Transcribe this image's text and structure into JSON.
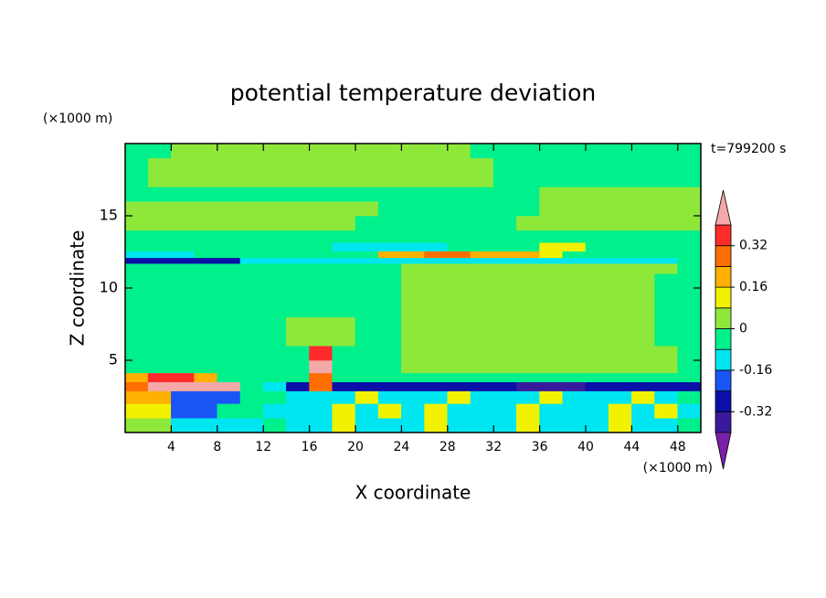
{
  "chart_data": {
    "type": "contour",
    "title": "potential temperature deviation",
    "xlabel": "X coordinate",
    "ylabel": "Z coordinate",
    "xunit": "(×1000 m)",
    "yunit": "(×1000 m)",
    "time_label": "t=799200 s",
    "xlim": [
      0,
      50
    ],
    "ylim": [
      0,
      20
    ],
    "xticks": [
      4,
      8,
      12,
      16,
      20,
      24,
      28,
      32,
      36,
      40,
      44,
      48
    ],
    "yticks": [
      5,
      10,
      15
    ],
    "levels": [
      -0.4,
      -0.32,
      -0.24,
      -0.16,
      -0.08,
      0,
      0.08,
      0.16,
      0.24,
      0.32,
      0.4
    ],
    "colors": [
      "#7a1fa8",
      "#3a1a9c",
      "#0a10a8",
      "#1a55f5",
      "#00e6f0",
      "#00f08c",
      "#8ee83a",
      "#f2f200",
      "#ffb000",
      "#ff6e00",
      "#ff2a2a",
      "#f4a8a8"
    ],
    "colorbar_ticks": [
      -0.32,
      -0.16,
      0,
      0.16,
      0.32
    ],
    "x": [
      1,
      3,
      5,
      7,
      9,
      11,
      13,
      15,
      17,
      19,
      21,
      23,
      25,
      27,
      29,
      31,
      33,
      35,
      37,
      39,
      41,
      43,
      45,
      47,
      49
    ],
    "y": [
      0.5,
      1.5,
      2.5,
      3.25,
      3.75,
      4.5,
      5.5,
      6.5,
      7.5,
      8.5,
      9.5,
      10.5,
      11.5,
      11.9,
      12.3,
      12.8,
      13.5,
      14.5,
      15.5,
      16.5,
      17.5,
      18.5,
      19.5
    ],
    "z": [
      [
        0.04,
        0.04,
        -0.12,
        -0.12,
        -0.12,
        -0.12,
        -0.04,
        -0.12,
        -0.12,
        0.12,
        -0.12,
        -0.12,
        -0.12,
        0.12,
        -0.12,
        -0.12,
        -0.12,
        0.12,
        -0.12,
        -0.12,
        -0.12,
        0.12,
        -0.12,
        -0.12,
        -0.04
      ],
      [
        0.12,
        0.12,
        -0.2,
        -0.2,
        -0.04,
        -0.04,
        -0.12,
        -0.12,
        -0.12,
        0.12,
        -0.12,
        0.12,
        -0.12,
        0.12,
        -0.12,
        -0.12,
        -0.12,
        0.12,
        -0.12,
        -0.12,
        -0.12,
        0.12,
        -0.12,
        0.12,
        -0.12
      ],
      [
        0.2,
        0.2,
        -0.2,
        -0.2,
        -0.2,
        -0.04,
        -0.04,
        -0.12,
        -0.12,
        -0.12,
        0.12,
        -0.12,
        -0.12,
        -0.12,
        0.12,
        -0.12,
        -0.12,
        -0.12,
        0.12,
        -0.12,
        -0.12,
        -0.12,
        0.12,
        -0.12,
        -0.04
      ],
      [
        0.28,
        0.45,
        0.45,
        0.45,
        0.45,
        -0.04,
        -0.12,
        -0.28,
        0.28,
        -0.28,
        -0.28,
        -0.28,
        -0.28,
        -0.28,
        -0.28,
        -0.28,
        -0.28,
        -0.36,
        -0.36,
        -0.36,
        -0.28,
        -0.28,
        -0.28,
        -0.28,
        -0.28
      ],
      [
        0.2,
        0.36,
        0.36,
        0.2,
        -0.04,
        -0.04,
        -0.04,
        -0.04,
        0.28,
        -0.04,
        -0.04,
        -0.04,
        -0.04,
        -0.04,
        -0.04,
        -0.04,
        -0.04,
        -0.04,
        -0.04,
        -0.04,
        -0.04,
        -0.04,
        -0.04,
        -0.04,
        -0.04
      ],
      [
        -0.04,
        -0.04,
        -0.04,
        -0.04,
        -0.04,
        -0.04,
        -0.04,
        -0.04,
        0.45,
        -0.04,
        -0.04,
        -0.04,
        0.04,
        0.04,
        0.04,
        0.04,
        0.04,
        0.04,
        0.04,
        0.04,
        0.04,
        0.04,
        0.04,
        0.04,
        -0.04
      ],
      [
        -0.04,
        -0.04,
        -0.04,
        -0.04,
        -0.04,
        -0.04,
        -0.04,
        -0.04,
        0.36,
        -0.04,
        -0.04,
        -0.04,
        0.04,
        0.04,
        0.04,
        0.04,
        0.04,
        0.04,
        0.04,
        0.04,
        0.04,
        0.04,
        0.04,
        0.04,
        -0.04
      ],
      [
        -0.04,
        -0.04,
        -0.04,
        -0.04,
        -0.04,
        -0.04,
        -0.04,
        0.04,
        0.04,
        0.04,
        -0.04,
        -0.04,
        0.04,
        0.04,
        0.04,
        0.04,
        0.04,
        0.04,
        0.04,
        0.04,
        0.04,
        0.04,
        0.04,
        -0.04,
        -0.04
      ],
      [
        -0.04,
        -0.04,
        -0.04,
        -0.04,
        -0.04,
        -0.04,
        -0.04,
        0.04,
        0.04,
        0.04,
        -0.04,
        -0.04,
        0.04,
        0.04,
        0.04,
        0.04,
        0.04,
        0.04,
        0.04,
        0.04,
        0.04,
        0.04,
        0.04,
        -0.04,
        -0.04
      ],
      [
        -0.04,
        -0.04,
        -0.04,
        -0.04,
        -0.04,
        -0.04,
        -0.04,
        -0.04,
        -0.04,
        -0.04,
        -0.04,
        -0.04,
        0.04,
        0.04,
        0.04,
        0.04,
        0.04,
        0.04,
        0.04,
        0.04,
        0.04,
        0.04,
        0.04,
        -0.04,
        -0.04
      ],
      [
        -0.04,
        -0.04,
        -0.04,
        -0.04,
        -0.04,
        -0.04,
        -0.04,
        -0.04,
        -0.04,
        -0.04,
        -0.04,
        -0.04,
        0.04,
        0.04,
        0.04,
        0.04,
        0.04,
        0.04,
        0.04,
        0.04,
        0.04,
        0.04,
        0.04,
        -0.04,
        -0.04
      ],
      [
        -0.04,
        -0.04,
        -0.04,
        -0.04,
        -0.04,
        -0.04,
        -0.04,
        -0.04,
        -0.04,
        -0.04,
        -0.04,
        -0.04,
        0.04,
        0.04,
        0.04,
        0.04,
        0.04,
        0.04,
        0.04,
        0.04,
        0.04,
        0.04,
        0.04,
        -0.04,
        -0.04
      ],
      [
        -0.04,
        -0.04,
        -0.04,
        -0.04,
        -0.04,
        -0.04,
        -0.04,
        -0.04,
        -0.04,
        -0.04,
        -0.04,
        -0.04,
        0.04,
        0.04,
        0.04,
        0.04,
        0.04,
        0.04,
        0.04,
        0.04,
        0.04,
        0.04,
        0.04,
        0.04,
        -0.04
      ],
      [
        -0.28,
        -0.28,
        -0.28,
        -0.28,
        -0.28,
        -0.12,
        -0.12,
        -0.12,
        -0.12,
        -0.12,
        -0.12,
        -0.12,
        -0.12,
        -0.12,
        -0.12,
        -0.12,
        -0.12,
        -0.12,
        -0.12,
        -0.12,
        -0.12,
        -0.12,
        -0.12,
        -0.12,
        -0.04
      ],
      [
        -0.12,
        -0.12,
        -0.12,
        -0.04,
        -0.04,
        -0.04,
        -0.04,
        -0.04,
        -0.04,
        -0.04,
        -0.04,
        0.2,
        0.2,
        0.28,
        0.28,
        0.2,
        0.2,
        0.2,
        0.12,
        -0.04,
        -0.04,
        -0.04,
        -0.04,
        -0.04,
        -0.04
      ],
      [
        -0.04,
        -0.04,
        -0.04,
        -0.04,
        -0.04,
        -0.04,
        -0.04,
        -0.04,
        -0.04,
        -0.12,
        -0.12,
        -0.12,
        -0.12,
        -0.12,
        -0.04,
        -0.04,
        -0.04,
        -0.04,
        0.12,
        0.12,
        -0.04,
        -0.04,
        -0.04,
        -0.04,
        -0.04
      ],
      [
        -0.04,
        -0.04,
        -0.04,
        -0.04,
        -0.04,
        -0.04,
        -0.04,
        -0.04,
        -0.04,
        -0.04,
        -0.04,
        -0.04,
        -0.04,
        -0.04,
        -0.04,
        -0.04,
        -0.04,
        -0.04,
        -0.04,
        -0.04,
        -0.04,
        -0.04,
        -0.04,
        -0.04,
        -0.04
      ],
      [
        0.04,
        0.04,
        0.04,
        0.04,
        0.04,
        0.04,
        0.04,
        0.04,
        0.04,
        0.04,
        -0.04,
        -0.04,
        -0.04,
        -0.04,
        -0.04,
        -0.04,
        -0.04,
        0.04,
        0.04,
        0.04,
        0.04,
        0.04,
        0.04,
        0.04,
        0.04
      ],
      [
        0.04,
        0.04,
        0.04,
        0.04,
        0.04,
        0.04,
        0.04,
        0.04,
        0.04,
        0.04,
        0.04,
        -0.04,
        -0.04,
        -0.04,
        -0.04,
        -0.04,
        -0.04,
        -0.04,
        0.04,
        0.04,
        0.04,
        0.04,
        0.04,
        0.04,
        0.04
      ],
      [
        -0.04,
        -0.04,
        -0.04,
        -0.04,
        -0.04,
        -0.04,
        -0.04,
        -0.04,
        -0.04,
        -0.04,
        -0.04,
        -0.04,
        -0.04,
        -0.04,
        -0.04,
        -0.04,
        -0.04,
        -0.04,
        0.04,
        0.04,
        0.04,
        0.04,
        0.04,
        0.04,
        0.04
      ],
      [
        -0.04,
        0.04,
        0.04,
        0.04,
        0.04,
        0.04,
        0.04,
        0.04,
        0.04,
        0.04,
        0.04,
        0.04,
        0.04,
        0.04,
        0.04,
        0.04,
        -0.04,
        -0.04,
        -0.04,
        -0.04,
        -0.04,
        -0.04,
        -0.04,
        -0.04,
        -0.04
      ],
      [
        -0.04,
        0.04,
        0.04,
        0.04,
        0.04,
        0.04,
        0.04,
        0.04,
        0.04,
        0.04,
        0.04,
        0.04,
        0.04,
        0.04,
        0.04,
        0.04,
        -0.04,
        -0.04,
        -0.04,
        -0.04,
        -0.04,
        -0.04,
        -0.04,
        -0.04,
        -0.04
      ],
      [
        -0.04,
        -0.04,
        0.04,
        0.04,
        0.04,
        0.04,
        0.04,
        0.04,
        0.04,
        0.04,
        0.04,
        0.04,
        0.04,
        0.04,
        0.04,
        -0.04,
        -0.04,
        -0.04,
        -0.04,
        -0.04,
        -0.04,
        -0.04,
        -0.04,
        -0.04,
        -0.04
      ]
    ]
  }
}
